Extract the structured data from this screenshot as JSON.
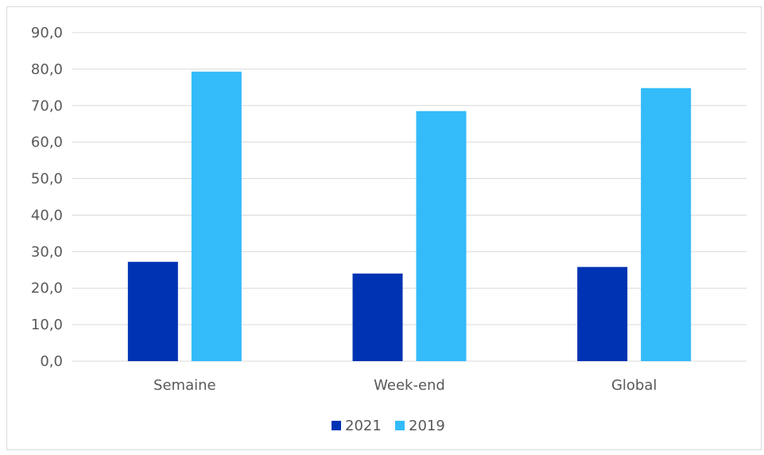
{
  "chart_data": {
    "type": "bar",
    "title": "",
    "xlabel": "",
    "ylabel": "",
    "categories": [
      "Semaine",
      "Week-end",
      "Global"
    ],
    "series": [
      {
        "name": "2021",
        "values": [
          27.2,
          24.0,
          25.8
        ],
        "color": "#0033b3"
      },
      {
        "name": "2019",
        "values": [
          79.3,
          68.5,
          74.8
        ],
        "color": "#33bbfa"
      }
    ],
    "ylim": [
      0,
      90
    ],
    "yticks": [
      "0,0",
      "10,0",
      "20,0",
      "30,0",
      "40,0",
      "50,0",
      "60,0",
      "70,0",
      "80,0",
      "90,0"
    ],
    "ytick_values": [
      0,
      10,
      20,
      30,
      40,
      50,
      60,
      70,
      80,
      90
    ],
    "grid": true,
    "legend_position": "bottom",
    "gridline_color": "#d9d9d9"
  }
}
